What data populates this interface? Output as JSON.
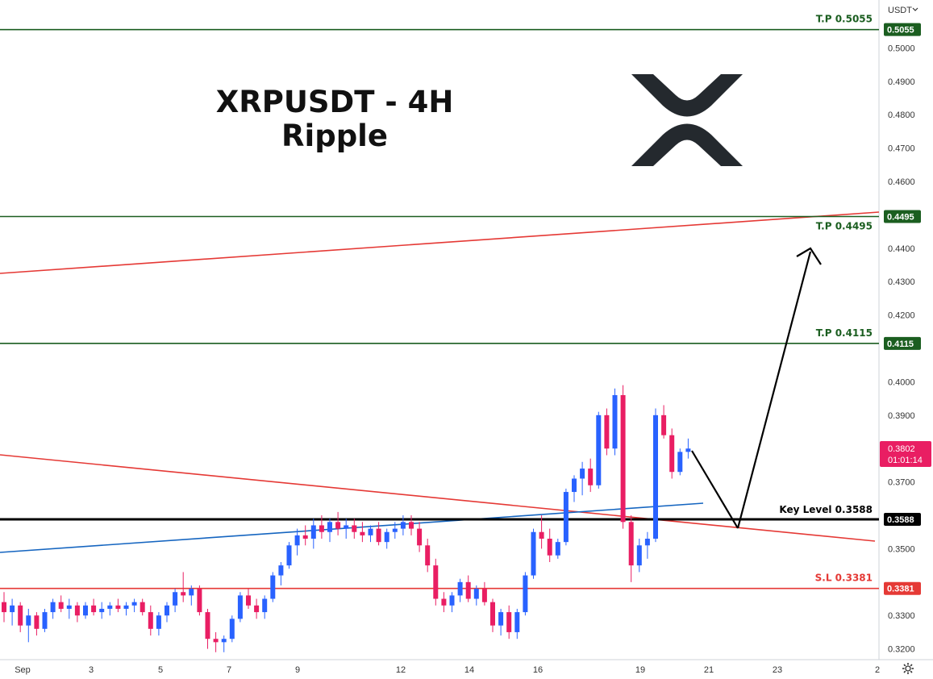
{
  "title": {
    "line1": "XRPUSDT - 4H",
    "line2": "Ripple"
  },
  "currency_menu": {
    "label": "USDT",
    "chevron": "chevron-down-icon"
  },
  "logo": "xrp-logo",
  "settings_icon": "gear-icon",
  "last_price": {
    "value": "0.3802",
    "countdown": "01:01:14",
    "color": "#e91e63"
  },
  "colors": {
    "up": "#2962ff",
    "down": "#e91e63",
    "tp": "#1b5e20",
    "sl": "#e53935",
    "key": "#000000"
  },
  "chart_data": {
    "type": "candlestick",
    "y_ticks": [
      "0.5000",
      "0.4900",
      "0.4800",
      "0.4700",
      "0.4600",
      "0.4400",
      "0.4300",
      "0.4200",
      "0.4000",
      "0.3900",
      "0.3700",
      "0.3500",
      "0.3300",
      "0.3200"
    ],
    "x_ticks": [
      "Sep",
      "3",
      "5",
      "7",
      "9",
      "12",
      "14",
      "16",
      "19",
      "21",
      "23",
      "2"
    ],
    "levels": [
      {
        "name": "T.P",
        "value": "0.5055",
        "label": "T.P   0.5055",
        "kind": "tp"
      },
      {
        "name": "T.P",
        "value": "0.4495",
        "label": "T.P   0.4495",
        "kind": "tp"
      },
      {
        "name": "T.P",
        "value": "0.4115",
        "label": "T.P   0.4115",
        "kind": "tp"
      },
      {
        "name": "Key Level",
        "value": "0.3588",
        "label": "Key Level  0.3588",
        "kind": "key"
      },
      {
        "name": "S.L",
        "value": "0.3381",
        "label": "S.L   0.3381",
        "kind": "sl"
      }
    ],
    "candles": [
      [
        0.334,
        0.337,
        0.328,
        0.331
      ],
      [
        0.331,
        0.335,
        0.327,
        0.333
      ],
      [
        0.333,
        0.334,
        0.325,
        0.327
      ],
      [
        0.327,
        0.332,
        0.322,
        0.33
      ],
      [
        0.33,
        0.331,
        0.324,
        0.326
      ],
      [
        0.326,
        0.332,
        0.325,
        0.331
      ],
      [
        0.331,
        0.335,
        0.329,
        0.334
      ],
      [
        0.334,
        0.336,
        0.331,
        0.332
      ],
      [
        0.332,
        0.335,
        0.329,
        0.333
      ],
      [
        0.333,
        0.334,
        0.328,
        0.33
      ],
      [
        0.33,
        0.334,
        0.329,
        0.333
      ],
      [
        0.333,
        0.335,
        0.33,
        0.331
      ],
      [
        0.331,
        0.334,
        0.329,
        0.332
      ],
      [
        0.332,
        0.334,
        0.33,
        0.333
      ],
      [
        0.333,
        0.335,
        0.331,
        0.332
      ],
      [
        0.332,
        0.334,
        0.33,
        0.333
      ],
      [
        0.333,
        0.335,
        0.331,
        0.334
      ],
      [
        0.334,
        0.335,
        0.33,
        0.331
      ],
      [
        0.331,
        0.333,
        0.324,
        0.326
      ],
      [
        0.326,
        0.331,
        0.324,
        0.33
      ],
      [
        0.33,
        0.334,
        0.328,
        0.333
      ],
      [
        0.333,
        0.338,
        0.331,
        0.337
      ],
      [
        0.337,
        0.343,
        0.334,
        0.336
      ],
      [
        0.336,
        0.339,
        0.333,
        0.338
      ],
      [
        0.338,
        0.339,
        0.33,
        0.331
      ],
      [
        0.331,
        0.332,
        0.32,
        0.323
      ],
      [
        0.323,
        0.325,
        0.319,
        0.322
      ],
      [
        0.322,
        0.324,
        0.319,
        0.323
      ],
      [
        0.323,
        0.33,
        0.322,
        0.329
      ],
      [
        0.329,
        0.337,
        0.328,
        0.336
      ],
      [
        0.336,
        0.338,
        0.332,
        0.333
      ],
      [
        0.333,
        0.335,
        0.329,
        0.331
      ],
      [
        0.331,
        0.336,
        0.329,
        0.335
      ],
      [
        0.335,
        0.343,
        0.334,
        0.342
      ],
      [
        0.342,
        0.346,
        0.339,
        0.345
      ],
      [
        0.345,
        0.352,
        0.344,
        0.351
      ],
      [
        0.351,
        0.356,
        0.348,
        0.354
      ],
      [
        0.354,
        0.357,
        0.351,
        0.353
      ],
      [
        0.353,
        0.359,
        0.35,
        0.357
      ],
      [
        0.357,
        0.36,
        0.353,
        0.355
      ],
      [
        0.355,
        0.359,
        0.352,
        0.358
      ],
      [
        0.358,
        0.361,
        0.354,
        0.356
      ],
      [
        0.356,
        0.359,
        0.353,
        0.357
      ],
      [
        0.357,
        0.359,
        0.353,
        0.355
      ],
      [
        0.355,
        0.358,
        0.352,
        0.354
      ],
      [
        0.354,
        0.357,
        0.352,
        0.356
      ],
      [
        0.356,
        0.358,
        0.351,
        0.352
      ],
      [
        0.352,
        0.356,
        0.35,
        0.355
      ],
      [
        0.355,
        0.358,
        0.353,
        0.356
      ],
      [
        0.356,
        0.36,
        0.354,
        0.358
      ],
      [
        0.358,
        0.36,
        0.354,
        0.356
      ],
      [
        0.356,
        0.358,
        0.349,
        0.351
      ],
      [
        0.351,
        0.353,
        0.343,
        0.345
      ],
      [
        0.345,
        0.347,
        0.333,
        0.335
      ],
      [
        0.335,
        0.337,
        0.331,
        0.333
      ],
      [
        0.333,
        0.337,
        0.331,
        0.336
      ],
      [
        0.336,
        0.341,
        0.334,
        0.34
      ],
      [
        0.34,
        0.342,
        0.334,
        0.335
      ],
      [
        0.335,
        0.339,
        0.333,
        0.338
      ],
      [
        0.338,
        0.34,
        0.333,
        0.334
      ],
      [
        0.334,
        0.335,
        0.325,
        0.327
      ],
      [
        0.327,
        0.332,
        0.324,
        0.331
      ],
      [
        0.331,
        0.333,
        0.323,
        0.325
      ],
      [
        0.325,
        0.332,
        0.323,
        0.331
      ],
      [
        0.331,
        0.343,
        0.33,
        0.342
      ],
      [
        0.342,
        0.356,
        0.341,
        0.355
      ],
      [
        0.355,
        0.36,
        0.35,
        0.353
      ],
      [
        0.353,
        0.356,
        0.346,
        0.348
      ],
      [
        0.348,
        0.353,
        0.347,
        0.352
      ],
      [
        0.352,
        0.368,
        0.351,
        0.367
      ],
      [
        0.367,
        0.372,
        0.364,
        0.371
      ],
      [
        0.371,
        0.376,
        0.366,
        0.374
      ],
      [
        0.374,
        0.377,
        0.367,
        0.369
      ],
      [
        0.369,
        0.391,
        0.368,
        0.39
      ],
      [
        0.39,
        0.392,
        0.378,
        0.38
      ],
      [
        0.38,
        0.398,
        0.378,
        0.396
      ],
      [
        0.396,
        0.399,
        0.356,
        0.358
      ],
      [
        0.358,
        0.36,
        0.34,
        0.345
      ],
      [
        0.345,
        0.353,
        0.343,
        0.351
      ],
      [
        0.351,
        0.355,
        0.347,
        0.353
      ],
      [
        0.353,
        0.392,
        0.352,
        0.39
      ],
      [
        0.39,
        0.393,
        0.383,
        0.384
      ],
      [
        0.384,
        0.386,
        0.371,
        0.373
      ],
      [
        0.373,
        0.38,
        0.372,
        0.379
      ],
      [
        0.379,
        0.383,
        0.377,
        0.38
      ]
    ],
    "grid": false,
    "y_axis_side": "right"
  }
}
